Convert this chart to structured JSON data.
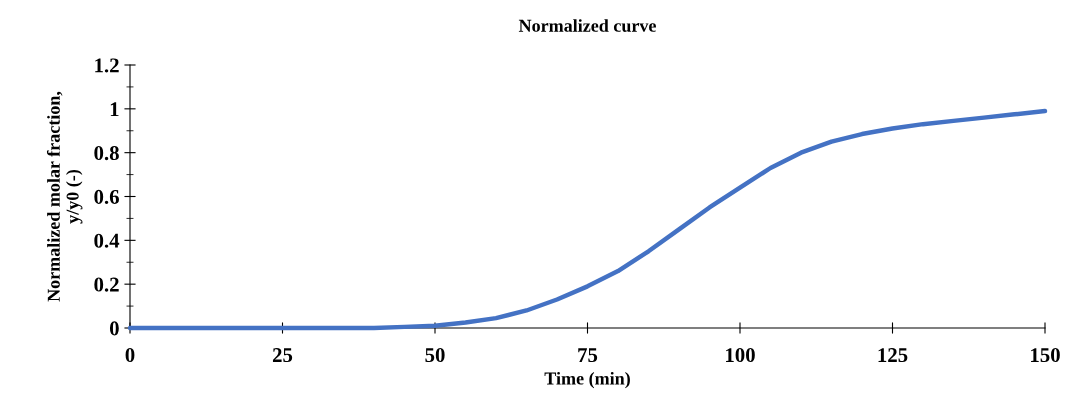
{
  "chart_data": {
    "type": "line",
    "title": "Normalized curve",
    "xlabel": "Time (min)",
    "ylabel": "Normalized molar fraction,\ny/y0 (-)",
    "x": [
      0,
      10,
      20,
      30,
      40,
      45,
      50,
      55,
      60,
      65,
      70,
      75,
      80,
      85,
      90,
      95,
      100,
      105,
      110,
      115,
      120,
      125,
      130,
      135,
      140,
      145,
      150
    ],
    "series": [
      {
        "color": "#4472c4",
        "values": [
          0,
          0,
          0,
          0,
          0,
          0.005,
          0.01,
          0.025,
          0.045,
          0.08,
          0.13,
          0.19,
          0.26,
          0.35,
          0.45,
          0.55,
          0.64,
          0.73,
          0.8,
          0.85,
          0.885,
          0.91,
          0.93,
          0.945,
          0.96,
          0.975,
          0.99
        ]
      }
    ],
    "xlim": [
      0,
      150
    ],
    "xticks": [
      0,
      25,
      50,
      75,
      100,
      125,
      150
    ],
    "ylim": [
      0,
      1.2
    ],
    "yticks": [
      {
        "value": 0,
        "label": "0"
      },
      0.2,
      0.4,
      0.6,
      0.8,
      {
        "value": 1,
        "label": "1"
      },
      1.2
    ],
    "grid": false,
    "marker": "none",
    "line_style": "solid"
  }
}
